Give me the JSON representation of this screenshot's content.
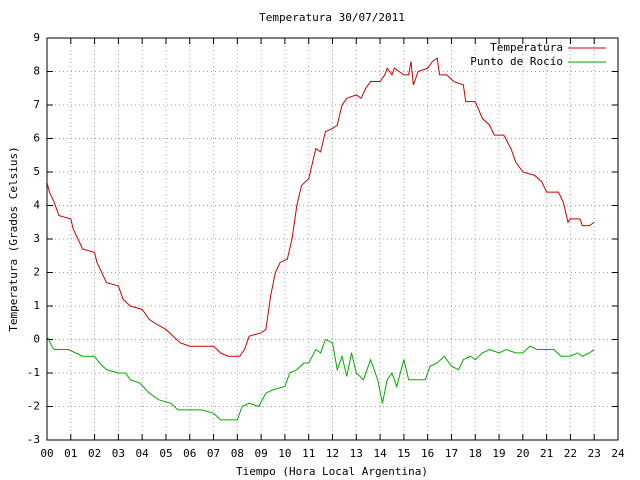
{
  "chart_data": {
    "type": "line",
    "title": "Temperatura 30/07/2011",
    "x_label": "Tiempo (Hora Local Argentina)",
    "y_label": "Temperatura (Grados Celsius)",
    "xlim": [
      0,
      24
    ],
    "ylim": [
      -3,
      9
    ],
    "xticks": [
      {
        "value": 0,
        "label": "00"
      },
      {
        "value": 1,
        "label": "01"
      },
      {
        "value": 2,
        "label": "02"
      },
      {
        "value": 3,
        "label": "03"
      },
      {
        "value": 4,
        "label": "04"
      },
      {
        "value": 5,
        "label": "05"
      },
      {
        "value": 6,
        "label": "06"
      },
      {
        "value": 7,
        "label": "07"
      },
      {
        "value": 8,
        "label": "08"
      },
      {
        "value": 9,
        "label": "09"
      },
      10,
      11,
      12,
      13,
      14,
      15,
      16,
      17,
      18,
      19,
      20,
      21,
      22,
      23,
      24
    ],
    "yticks": [
      -3,
      -2,
      -1,
      0,
      1,
      2,
      3,
      4,
      5,
      6,
      7,
      8,
      9
    ],
    "grid": true,
    "legend": "top-right",
    "series": [
      {
        "name": "Temperatura",
        "color": "#cc0000",
        "x": [
          0,
          0.1,
          0.3,
          0.5,
          1.0,
          1.1,
          1.5,
          2.0,
          2.1,
          2.5,
          3.0,
          3.2,
          3.5,
          4.0,
          4.3,
          4.5,
          5.0,
          5.3,
          5.6,
          6.0,
          7.0,
          7.3,
          7.6,
          8.1,
          8.3,
          8.5,
          9.0,
          9.2,
          9.4,
          9.6,
          9.8,
          10.1,
          10.3,
          10.5,
          10.7,
          11.0,
          11.2,
          11.3,
          11.5,
          11.7,
          12.0,
          12.2,
          12.4,
          12.6,
          13.0,
          13.2,
          13.4,
          13.6,
          14.0,
          14.2,
          14.3,
          14.5,
          14.6,
          15.0,
          15.2,
          15.3,
          15.4,
          15.6,
          16.0,
          16.2,
          16.4,
          16.5,
          16.8,
          17.1,
          17.5,
          17.6,
          18.0,
          18.3,
          18.6,
          18.8,
          19.2,
          19.5,
          19.7,
          20.0,
          20.5,
          20.8,
          21.0,
          21.5,
          21.7,
          21.9,
          22.0,
          22.4,
          22.5,
          22.8,
          23.0
        ],
        "values": [
          4.7,
          4.4,
          4.1,
          3.7,
          3.6,
          3.3,
          2.7,
          2.6,
          2.3,
          1.7,
          1.6,
          1.2,
          1.0,
          0.9,
          0.6,
          0.5,
          0.3,
          0.1,
          -0.1,
          -0.2,
          -0.2,
          -0.4,
          -0.5,
          -0.5,
          -0.3,
          0.1,
          0.2,
          0.3,
          1.3,
          2.0,
          2.3,
          2.4,
          3.0,
          4.0,
          4.6,
          4.8,
          5.4,
          5.7,
          5.6,
          6.2,
          6.3,
          6.4,
          7.0,
          7.2,
          7.3,
          7.2,
          7.5,
          7.7,
          7.7,
          7.9,
          8.1,
          7.9,
          8.1,
          7.9,
          7.9,
          8.3,
          7.6,
          8.0,
          8.1,
          8.3,
          8.4,
          7.9,
          7.9,
          7.7,
          7.6,
          7.1,
          7.1,
          6.6,
          6.4,
          6.1,
          6.1,
          5.7,
          5.3,
          5.0,
          4.9,
          4.7,
          4.4,
          4.4,
          4.1,
          3.5,
          3.6,
          3.6,
          3.4,
          3.4,
          3.5
        ]
      },
      {
        "name": "Punto de Rocío",
        "color": "#00aa00",
        "x": [
          0,
          0.2,
          0.3,
          0.9,
          1.5,
          2.0,
          2.2,
          2.5,
          3.0,
          3.3,
          3.5,
          3.9,
          4.3,
          4.7,
          5.2,
          5.5,
          6.0,
          6.5,
          7.0,
          7.3,
          7.6,
          8.0,
          8.2,
          8.5,
          8.9,
          9.2,
          9.5,
          10.0,
          10.2,
          10.5,
          10.8,
          11.0,
          11.3,
          11.5,
          11.7,
          12.0,
          12.2,
          12.4,
          12.6,
          12.8,
          13.0,
          13.3,
          13.6,
          13.9,
          14.1,
          14.3,
          14.5,
          14.7,
          15.0,
          15.2,
          15.5,
          15.9,
          16.1,
          16.4,
          16.7,
          17.0,
          17.3,
          17.5,
          17.8,
          18.0,
          18.3,
          18.6,
          19.0,
          19.3,
          19.7,
          20.0,
          20.3,
          20.6,
          21.0,
          21.3,
          21.6,
          22.0,
          22.3,
          22.5,
          22.8,
          23.0
        ],
        "values": [
          0.1,
          -0.2,
          -0.3,
          -0.3,
          -0.5,
          -0.5,
          -0.7,
          -0.9,
          -1.0,
          -1.0,
          -1.2,
          -1.3,
          -1.6,
          -1.8,
          -1.9,
          -2.1,
          -2.1,
          -2.1,
          -2.2,
          -2.4,
          -2.4,
          -2.4,
          -2.0,
          -1.9,
          -2.0,
          -1.6,
          -1.5,
          -1.4,
          -1.0,
          -0.9,
          -0.7,
          -0.7,
          -0.3,
          -0.4,
          0.0,
          -0.1,
          -0.9,
          -0.5,
          -1.1,
          -0.4,
          -1.0,
          -1.2,
          -0.6,
          -1.2,
          -1.9,
          -1.2,
          -1.0,
          -1.4,
          -0.6,
          -1.2,
          -1.2,
          -1.2,
          -0.8,
          -0.7,
          -0.5,
          -0.8,
          -0.9,
          -0.6,
          -0.5,
          -0.6,
          -0.4,
          -0.3,
          -0.4,
          -0.3,
          -0.4,
          -0.4,
          -0.2,
          -0.3,
          -0.3,
          -0.3,
          -0.5,
          -0.5,
          -0.4,
          -0.5,
          -0.4,
          -0.3
        ]
      }
    ]
  }
}
